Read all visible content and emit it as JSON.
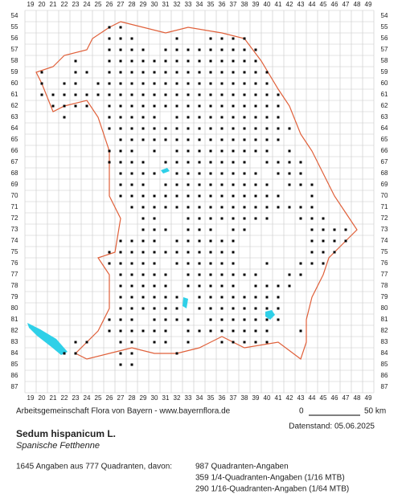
{
  "map": {
    "columns": [
      19,
      20,
      21,
      22,
      23,
      24,
      25,
      26,
      27,
      28,
      29,
      30,
      31,
      32,
      33,
      34,
      35,
      36,
      37,
      38,
      39,
      40,
      41,
      42,
      43,
      44,
      45,
      46,
      47,
      48,
      49
    ],
    "rows": [
      54,
      55,
      56,
      57,
      58,
      59,
      60,
      61,
      62,
      63,
      64,
      65,
      66,
      67,
      68,
      69,
      70,
      71,
      72,
      73,
      74,
      75,
      76,
      77,
      78,
      79,
      80,
      81,
      82,
      83,
      84,
      85,
      86,
      87
    ],
    "occupied": [
      {
        "row": 55,
        "cols": [
          26,
          27
        ]
      },
      {
        "row": 56,
        "cols": [
          26,
          27,
          28,
          32,
          35,
          36,
          37,
          38
        ]
      },
      {
        "row": 57,
        "cols": [
          26,
          27,
          28,
          29,
          31,
          32,
          33,
          34,
          35,
          36,
          37,
          38,
          39
        ]
      },
      {
        "row": 58,
        "cols": [
          23,
          26,
          27,
          28,
          29,
          30,
          31,
          32,
          33,
          34,
          35,
          36,
          37,
          38,
          39
        ]
      },
      {
        "row": 59,
        "cols": [
          20,
          23,
          24,
          26,
          27,
          28,
          29,
          30,
          31,
          32,
          33,
          34,
          35,
          36,
          37,
          38,
          39,
          40
        ]
      },
      {
        "row": 60,
        "cols": [
          20,
          22,
          23,
          25,
          26,
          27,
          28,
          29,
          30,
          31,
          32,
          33,
          34,
          35,
          36,
          37,
          38,
          39,
          40
        ]
      },
      {
        "row": 61,
        "cols": [
          20,
          21,
          22,
          23,
          24,
          25,
          26,
          27,
          28,
          29,
          30,
          31,
          32,
          33,
          34,
          35,
          36,
          37,
          38,
          39,
          40,
          41
        ]
      },
      {
        "row": 62,
        "cols": [
          21,
          22,
          23,
          24,
          26,
          27,
          28,
          29,
          30,
          31,
          32,
          33,
          34,
          35,
          36,
          37,
          38,
          39,
          40,
          41
        ]
      },
      {
        "row": 63,
        "cols": [
          22,
          26,
          27,
          28,
          29,
          30,
          32,
          33,
          34,
          35,
          36,
          37,
          38,
          39,
          40,
          41
        ]
      },
      {
        "row": 64,
        "cols": [
          26,
          27,
          28,
          29,
          30,
          31,
          32,
          33,
          34,
          35,
          36,
          37,
          38,
          39,
          40,
          41,
          42
        ]
      },
      {
        "row": 65,
        "cols": [
          27,
          28,
          29,
          30,
          31,
          32,
          33,
          34,
          35,
          36,
          37,
          38,
          39,
          40,
          41
        ]
      },
      {
        "row": 66,
        "cols": [
          26,
          27,
          28,
          30,
          32,
          33,
          34,
          35,
          36,
          37,
          38,
          39,
          40,
          42
        ]
      },
      {
        "row": 67,
        "cols": [
          26,
          27,
          28,
          29,
          31,
          32,
          33,
          34,
          35,
          36,
          37,
          38,
          40,
          41,
          42,
          43
        ]
      },
      {
        "row": 68,
        "cols": [
          27,
          28,
          29,
          30,
          32,
          33,
          34,
          35,
          36,
          37,
          38,
          39,
          41,
          42,
          43
        ]
      },
      {
        "row": 69,
        "cols": [
          27,
          28,
          29,
          31,
          32,
          33,
          34,
          35,
          36,
          37,
          38,
          39,
          40,
          42,
          43,
          44
        ]
      },
      {
        "row": 70,
        "cols": [
          27,
          28,
          29,
          30,
          31,
          32,
          33,
          34,
          35,
          36,
          37,
          38,
          39,
          40,
          41,
          44
        ]
      },
      {
        "row": 71,
        "cols": [
          28,
          29,
          30,
          31,
          32,
          33,
          34,
          35,
          36,
          37,
          38,
          39,
          40,
          41,
          42,
          43,
          44
        ]
      },
      {
        "row": 72,
        "cols": [
          29,
          30,
          33,
          34,
          35,
          36,
          37,
          38,
          39,
          40,
          43,
          44,
          45
        ]
      },
      {
        "row": 73,
        "cols": [
          29,
          30,
          31,
          33,
          34,
          35,
          37,
          38,
          44,
          45,
          46,
          47
        ]
      },
      {
        "row": 74,
        "cols": [
          27,
          28,
          29,
          30,
          32,
          33,
          34,
          35,
          36,
          37,
          44,
          45,
          46,
          47
        ]
      },
      {
        "row": 75,
        "cols": [
          26,
          27,
          28,
          29,
          30,
          31,
          32,
          33,
          34,
          35,
          36,
          37,
          44,
          45,
          46
        ]
      },
      {
        "row": 76,
        "cols": [
          26,
          27,
          28,
          29,
          30,
          32,
          33,
          34,
          35,
          36,
          37,
          40,
          43,
          44,
          45
        ]
      },
      {
        "row": 77,
        "cols": [
          27,
          28,
          29,
          30,
          31,
          33,
          34,
          35,
          36,
          37,
          38,
          39,
          42,
          43
        ]
      },
      {
        "row": 78,
        "cols": [
          27,
          28,
          29,
          30,
          31,
          33,
          34,
          35,
          36,
          37,
          39,
          40,
          41,
          42
        ]
      },
      {
        "row": 79,
        "cols": [
          27,
          28,
          29,
          30,
          31,
          32,
          34,
          35,
          36,
          37,
          38,
          39,
          40,
          41
        ]
      },
      {
        "row": 80,
        "cols": [
          27,
          28,
          29,
          30,
          31,
          32,
          34,
          35,
          36,
          37,
          38,
          39,
          40,
          41
        ]
      },
      {
        "row": 81,
        "cols": [
          26,
          27,
          28,
          30,
          31,
          32,
          33,
          35,
          36,
          37,
          38,
          39,
          40,
          41
        ]
      },
      {
        "row": 82,
        "cols": [
          26,
          27,
          28,
          29,
          30,
          31,
          33,
          34,
          35,
          36,
          37,
          38,
          39,
          40,
          43
        ]
      },
      {
        "row": 83,
        "cols": [
          23,
          24,
          27,
          28,
          30,
          31,
          33,
          36,
          37,
          38,
          39,
          40
        ]
      },
      {
        "row": 84,
        "cols": [
          22,
          23,
          27,
          28,
          32
        ]
      },
      {
        "row": 85,
        "cols": [
          27,
          28
        ]
      }
    ]
  },
  "footer": {
    "credit": "Arbeitsgemeinschaft Flora von Bayern - www.bayernflora.de",
    "scale_start": "0",
    "scale_end": "50 km",
    "date": "Datenstand: 05.06.2025",
    "species": "Sedum hispanicum L.",
    "common_name": "Spanische Fetthenne",
    "summary": "1645 Angaben aus 777 Quadranten, davon:",
    "breakdown": [
      "987 Quadranten-Angaben",
      "359 1/4-Quadranten-Angaben (1/16 MTB)",
      "290 1/16-Quadranten-Angaben (1/64 MTB)"
    ]
  }
}
